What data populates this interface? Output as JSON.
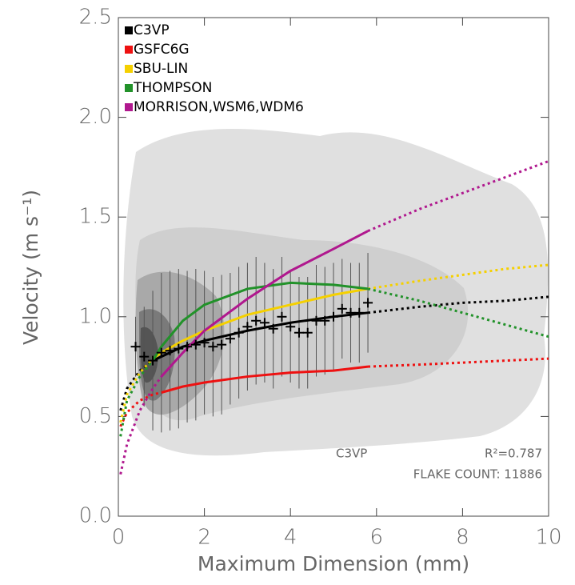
{
  "chart_data": {
    "type": "line",
    "x_label": "Maximum Dimension (mm)",
    "y_label": "Velocity (m s⁻¹)",
    "xlim": [
      0,
      10
    ],
    "ylim": [
      0,
      2.5
    ],
    "xticks": [
      0,
      2,
      4,
      6,
      8,
      10
    ],
    "yticks": [
      {
        "value": 0,
        "label": "0.0"
      },
      {
        "value": 0.5,
        "label": "0.5"
      },
      {
        "value": 1,
        "label": "1.0"
      },
      {
        "value": 1.5,
        "label": "1.5"
      },
      {
        "value": 2,
        "label": "2.0"
      },
      {
        "value": 2.5,
        "label": "2.5"
      }
    ],
    "legend": "upper left",
    "x": [
      0.05,
      0.2,
      0.5,
      0.8,
      1,
      1.5,
      2,
      3,
      4,
      5,
      5.8,
      7,
      8,
      9,
      10
    ],
    "series": [
      {
        "name": "C3VP",
        "color": "#000000",
        "solid_range": [
          0.8,
          5.8
        ],
        "values": [
          0.53,
          0.64,
          0.73,
          0.78,
          0.8,
          0.85,
          0.88,
          0.93,
          0.97,
          1.0,
          1.02,
          1.05,
          1.07,
          1.08,
          1.1
        ]
      },
      {
        "name": "GSFC6G",
        "color": "#ee1111",
        "solid_range": [
          1,
          5.8
        ],
        "values": [
          0.45,
          0.52,
          0.58,
          0.61,
          0.62,
          0.65,
          0.67,
          0.7,
          0.72,
          0.73,
          0.75,
          0.76,
          0.77,
          0.78,
          0.79
        ]
      },
      {
        "name": "SBU-LIN",
        "color": "#f5d000",
        "solid_range": [
          0.8,
          5.8
        ],
        "values": [
          0.47,
          0.61,
          0.72,
          0.79,
          0.82,
          0.88,
          0.93,
          1.01,
          1.06,
          1.11,
          1.14,
          1.18,
          1.21,
          1.24,
          1.26
        ]
      },
      {
        "name": "THOMPSON",
        "color": "#22922a",
        "solid_range": [
          0.8,
          5.8
        ],
        "values": [
          0.4,
          0.58,
          0.7,
          0.78,
          0.85,
          0.98,
          1.06,
          1.14,
          1.17,
          1.16,
          1.14,
          1.08,
          1.02,
          0.96,
          0.9
        ]
      },
      {
        "name": "MORRISON,WSM6,WDM6",
        "color": "#b0188e",
        "solid_range": [
          1,
          5.8
        ],
        "values": [
          0.21,
          0.36,
          0.53,
          0.64,
          0.7,
          0.82,
          0.93,
          1.09,
          1.23,
          1.34,
          1.43,
          1.54,
          1.62,
          1.7,
          1.78
        ]
      }
    ],
    "points": {
      "color": "#000000",
      "x": [
        0.4,
        0.6,
        0.8,
        1.0,
        1.2,
        1.4,
        1.6,
        1.8,
        2.0,
        2.2,
        2.4,
        2.6,
        2.8,
        3.0,
        3.2,
        3.4,
        3.6,
        3.8,
        4.0,
        4.2,
        4.4,
        4.6,
        4.8,
        5.0,
        5.2,
        5.4,
        5.6,
        5.8
      ],
      "values": [
        0.85,
        0.8,
        0.78,
        0.82,
        0.83,
        0.84,
        0.85,
        0.86,
        0.87,
        0.85,
        0.86,
        0.89,
        0.92,
        0.95,
        0.98,
        0.97,
        0.94,
        1.0,
        0.95,
        0.92,
        0.92,
        0.98,
        0.98,
        1.0,
        1.04,
        1.02,
        1.02,
        1.07
      ],
      "errors": [
        0.15,
        0.25,
        0.35,
        0.4,
        0.4,
        0.4,
        0.38,
        0.38,
        0.36,
        0.35,
        0.35,
        0.33,
        0.33,
        0.32,
        0.32,
        0.3,
        0.3,
        0.3,
        0.28,
        0.28,
        0.28,
        0.28,
        0.27,
        0.27,
        0.25,
        0.25,
        0.25,
        0.25
      ]
    },
    "annotations": [
      "C3VP",
      "R²=0.787",
      "FLAKE COUNT: 11886"
    ]
  }
}
